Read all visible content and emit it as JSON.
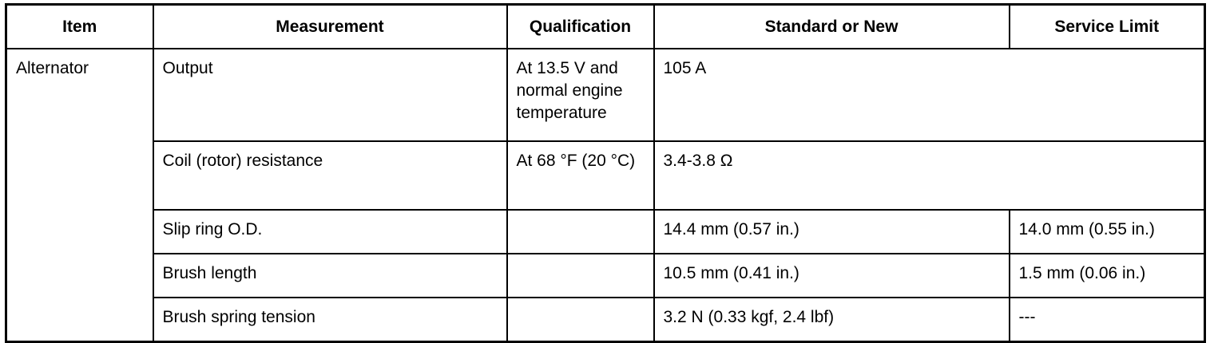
{
  "table": {
    "header": [
      "Item",
      "Measurement",
      "Qualification",
      "Standard or New",
      "Service Limit"
    ],
    "item": "Alternator",
    "rows": [
      {
        "measurement": "Output",
        "qualification": "At 13.5 V and normal engine temperature",
        "standard": "105 A"
      },
      {
        "measurement": "Coil (rotor) resistance",
        "qualification": "At 68 °F (20 °C)",
        "standard": "3.4-3.8 Ω"
      },
      {
        "measurement": "Slip ring O.D.",
        "standard": "14.4 mm (0.57 in.)",
        "limit": "14.0 mm (0.55 in.)"
      },
      {
        "measurement": "Brush length",
        "standard": "10.5 mm (0.41 in.)",
        "limit": "1.5 mm (0.06 in.)"
      },
      {
        "measurement": "Brush spring tension",
        "standard": "3.2 N (0.33 kgf, 2.4 lbf)",
        "limit": "---"
      }
    ]
  }
}
